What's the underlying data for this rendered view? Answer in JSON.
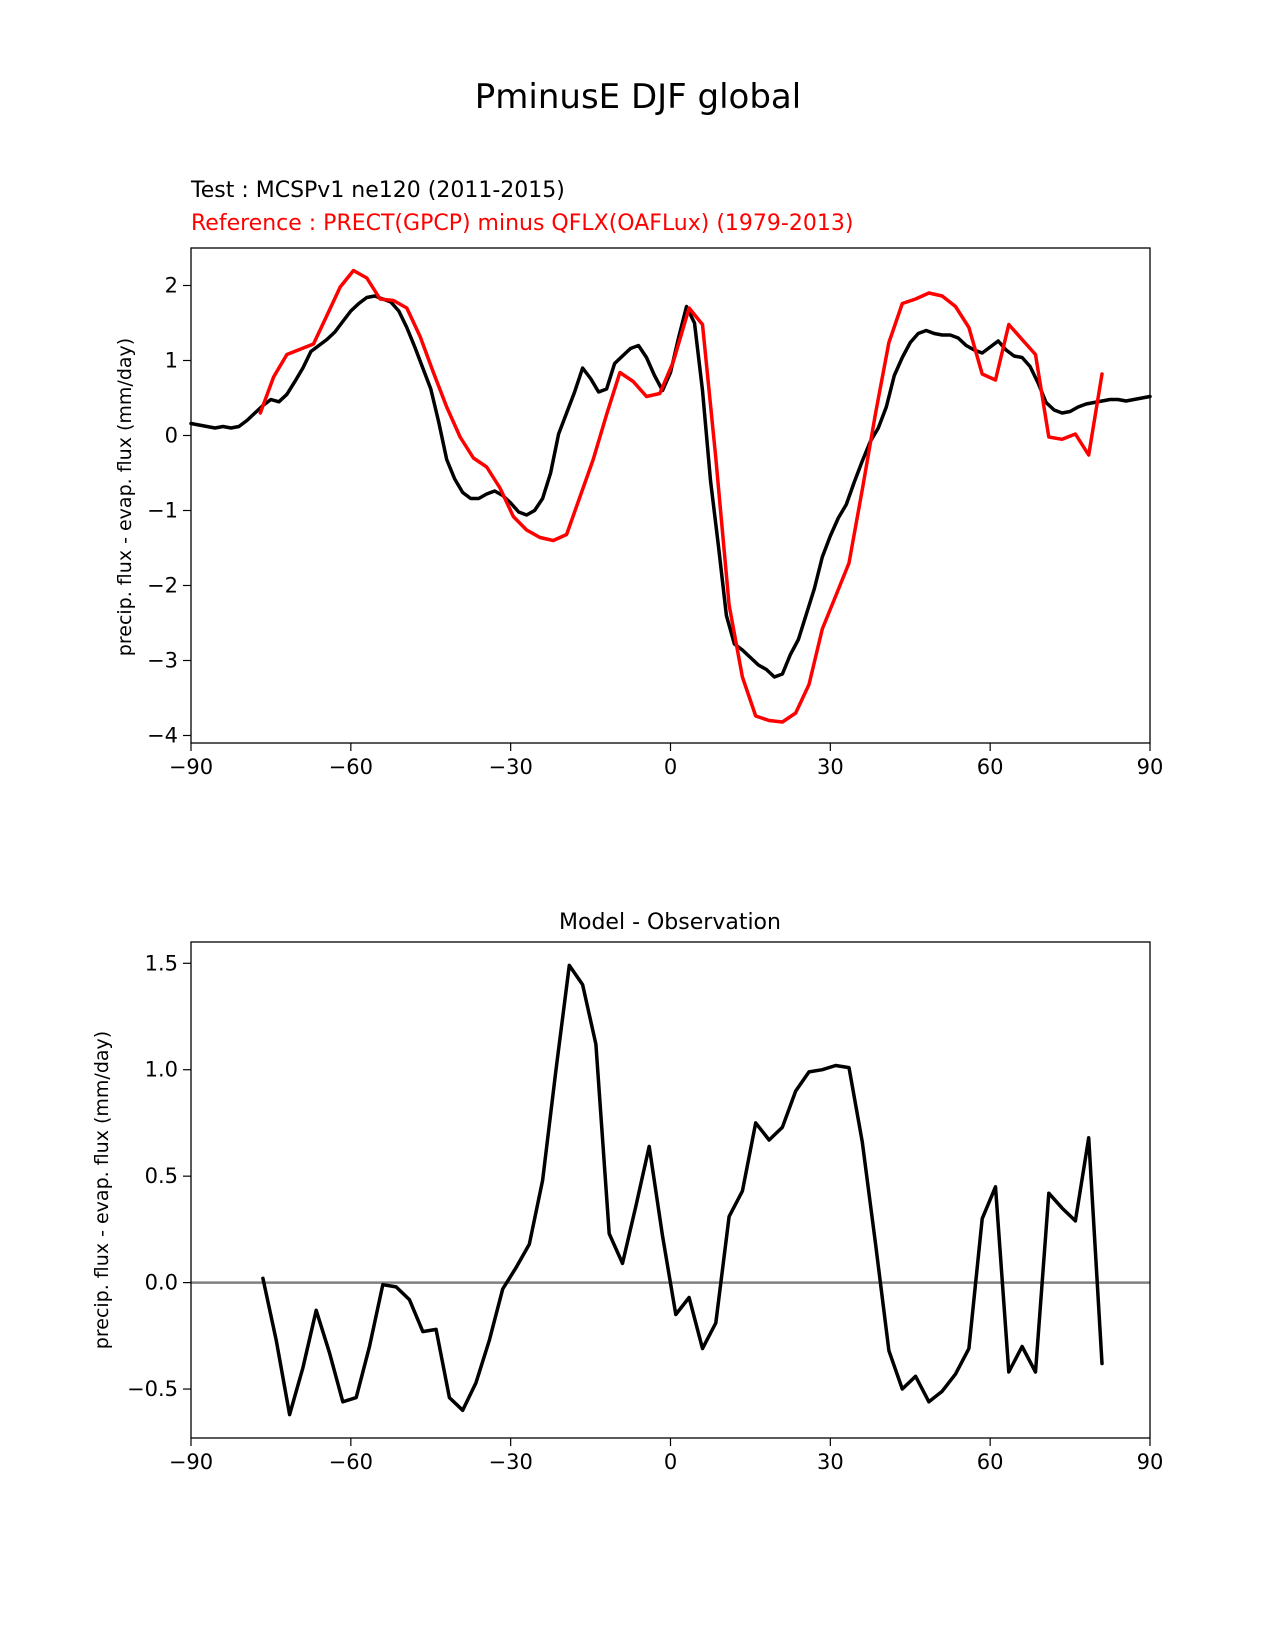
{
  "figure": {
    "title": "PminusE DJF global"
  },
  "top_panel": {
    "test_label": "Test : MCSPv1 ne120 (2011-2015)",
    "ref_label": "Reference : PRECT(GPCP) minus QFLX(OAFLux) (1979-2013)",
    "test_color": "#000000",
    "ref_color": "#ff0000"
  },
  "bottom_panel": {
    "title": "Model - Observation",
    "zero_line_color": "#808080"
  },
  "chart_data": [
    {
      "type": "line",
      "panel": "top",
      "title": "",
      "xlabel": "",
      "ylabel": "precip. flux - evap. flux (mm/day)",
      "xlim": [
        -90,
        90
      ],
      "ylim": [
        -4.1,
        2.5
      ],
      "xticks": [
        -90,
        -60,
        -30,
        0,
        30,
        60,
        90
      ],
      "yticks": [
        -4,
        -3,
        -2,
        -1,
        0,
        1,
        2
      ],
      "xtick_labels": [
        "−90",
        "−60",
        "−30",
        "0",
        "30",
        "60",
        "90"
      ],
      "ytick_labels": [
        "−4",
        "−3",
        "−2",
        "−1",
        "0",
        "1",
        "2"
      ],
      "grid": false,
      "series": [
        {
          "name": "Test : MCSPv1 ne120 (2011-2015)",
          "color": "#000000",
          "x": [
            -90,
            -88.5,
            -87,
            -85.5,
            -84,
            -82.5,
            -81,
            -79.5,
            -78,
            -76.5,
            -75,
            -73.5,
            -72,
            -70.5,
            -69,
            -67.5,
            -66,
            -64.5,
            -63,
            -61.5,
            -60,
            -58.5,
            -57,
            -55.5,
            -54,
            -52.5,
            -51,
            -49.5,
            -48,
            -46.5,
            -45,
            -43.5,
            -42,
            -40.5,
            -39,
            -37.5,
            -36,
            -34.5,
            -33,
            -31.5,
            -30,
            -28.5,
            -27,
            -25.5,
            -24,
            -22.5,
            -21,
            -19.5,
            -18,
            -16.5,
            -15,
            -13.5,
            -12,
            -10.5,
            -9,
            -7.5,
            -6,
            -4.5,
            -3,
            -1.5,
            0,
            1.5,
            3,
            4.5,
            6,
            7.5,
            9,
            10.5,
            12,
            13.5,
            15,
            16.5,
            18,
            19.5,
            21,
            22.5,
            24,
            25.5,
            27,
            28.5,
            30,
            31.5,
            33,
            34.5,
            36,
            37.5,
            39,
            40.5,
            42,
            43.5,
            45,
            46.5,
            48,
            49.5,
            51,
            52.5,
            54,
            55.5,
            57,
            58.5,
            60,
            61.5,
            63,
            64.5,
            66,
            67.5,
            69,
            70.5,
            72,
            73.5,
            75,
            76.5,
            78,
            79.5,
            81,
            82.5,
            84,
            85.5,
            87,
            88.5,
            90
          ],
          "y": [
            0.16,
            0.14,
            0.12,
            0.1,
            0.12,
            0.1,
            0.12,
            0.2,
            0.3,
            0.4,
            0.48,
            0.45,
            0.55,
            0.72,
            0.9,
            1.12,
            1.2,
            1.28,
            1.38,
            1.52,
            1.66,
            1.76,
            1.84,
            1.86,
            1.82,
            1.78,
            1.66,
            1.44,
            1.18,
            0.9,
            0.62,
            0.18,
            -0.32,
            -0.58,
            -0.76,
            -0.84,
            -0.84,
            -0.78,
            -0.74,
            -0.8,
            -0.9,
            -1.02,
            -1.06,
            -1.0,
            -0.84,
            -0.5,
            0.02,
            0.3,
            0.58,
            0.9,
            0.76,
            0.58,
            0.62,
            0.96,
            1.06,
            1.16,
            1.2,
            1.04,
            0.8,
            0.6,
            0.84,
            1.3,
            1.72,
            1.5,
            0.6,
            -0.6,
            -1.48,
            -2.4,
            -2.78,
            -2.86,
            -2.96,
            -3.06,
            -3.12,
            -3.22,
            -3.18,
            -2.92,
            -2.72,
            -2.38,
            -2.04,
            -1.62,
            -1.34,
            -1.1,
            -0.92,
            -0.62,
            -0.34,
            -0.08,
            0.1,
            0.38,
            0.8,
            1.04,
            1.24,
            1.36,
            1.4,
            1.36,
            1.34,
            1.34,
            1.3,
            1.2,
            1.14,
            1.1,
            1.18,
            1.26,
            1.14,
            1.06,
            1.04,
            0.92,
            0.7,
            0.44,
            0.34,
            0.3,
            0.32,
            0.38,
            0.42,
            0.44,
            0.46,
            0.48,
            0.48,
            0.46,
            0.48,
            0.5,
            0.52
          ]
        },
        {
          "name": "Reference : PRECT(GPCP) minus QFLX(OAFLux) (1979-2013)",
          "color": "#ff0000",
          "x": [
            -77,
            -74.5,
            -72,
            -67,
            -64.5,
            -62,
            -59.5,
            -57,
            -54.5,
            -52,
            -49.5,
            -47,
            -44.5,
            -42,
            -39.5,
            -37,
            -34.5,
            -32,
            -29.5,
            -27,
            -24.5,
            -22,
            -19.5,
            -17,
            -14.5,
            -12,
            -9.5,
            -7,
            -4.5,
            -2,
            0.5,
            3.5,
            6,
            8.5,
            11,
            13.5,
            16,
            18.5,
            21,
            23.5,
            26,
            28.5,
            31,
            33.5,
            36,
            38.5,
            41,
            43.5,
            46,
            48.5,
            51,
            53.5,
            56,
            58.5,
            61,
            63.5,
            66,
            68.5,
            71,
            73.5,
            76,
            78.5,
            81
          ],
          "y": [
            0.3,
            0.78,
            1.08,
            1.22,
            1.6,
            1.98,
            2.2,
            2.1,
            1.82,
            1.8,
            1.7,
            1.32,
            0.84,
            0.38,
            -0.02,
            -0.3,
            -0.42,
            -0.7,
            -1.08,
            -1.26,
            -1.36,
            -1.4,
            -1.32,
            -0.82,
            -0.32,
            0.28,
            0.84,
            0.72,
            0.52,
            0.56,
            0.98,
            1.7,
            1.48,
            -0.3,
            -2.26,
            -3.22,
            -3.74,
            -3.8,
            -3.82,
            -3.7,
            -3.32,
            -2.58,
            -2.14,
            -1.7,
            -0.72,
            0.3,
            1.24,
            1.76,
            1.82,
            1.9,
            1.86,
            1.72,
            1.44,
            0.82,
            0.74,
            1.48,
            1.28,
            1.08,
            -0.02,
            -0.05,
            0.02,
            -0.26,
            0.82
          ]
        }
      ]
    },
    {
      "type": "line",
      "panel": "bottom",
      "title": "Model - Observation",
      "xlabel": "",
      "ylabel": "precip. flux - evap. flux (mm/day)",
      "xlim": [
        -90,
        90
      ],
      "ylim": [
        -0.73,
        1.6
      ],
      "xticks": [
        -90,
        -60,
        -30,
        0,
        30,
        60,
        90
      ],
      "yticks": [
        -0.5,
        0.0,
        0.5,
        1.0,
        1.5
      ],
      "xtick_labels": [
        "−90",
        "−60",
        "−30",
        "0",
        "30",
        "60",
        "90"
      ],
      "ytick_labels": [
        "−0.5",
        "0.0",
        "0.5",
        "1.0",
        "1.5"
      ],
      "grid": false,
      "zero_line": true,
      "series": [
        {
          "name": "",
          "color": "#000000",
          "x": [
            -76.5,
            -74,
            -71.5,
            -69,
            -66.5,
            -64,
            -61.5,
            -59,
            -56.5,
            -54,
            -51.5,
            -49,
            -46.5,
            -44,
            -41.5,
            -39,
            -36.5,
            -34,
            -31.5,
            -29,
            -26.5,
            -24,
            -21.5,
            -19,
            -16.5,
            -14,
            -11.5,
            -9,
            -6.5,
            -4,
            -1.5,
            1,
            3.5,
            6,
            8.5,
            11,
            13.5,
            16,
            18.5,
            21,
            23.5,
            26,
            28.5,
            31,
            33.5,
            36,
            38.5,
            41,
            43.5,
            46,
            48.5,
            51,
            53.5,
            56,
            58.5,
            61,
            63.5,
            66,
            68.5,
            71,
            73.5,
            76,
            78.5,
            81
          ],
          "y": [
            0.02,
            -0.27,
            -0.62,
            -0.4,
            -0.13,
            -0.33,
            -0.56,
            -0.54,
            -0.3,
            -0.01,
            -0.02,
            -0.08,
            -0.23,
            -0.22,
            -0.54,
            -0.6,
            -0.47,
            -0.27,
            -0.03,
            0.07,
            0.18,
            0.48,
            1.0,
            1.49,
            1.4,
            1.12,
            0.23,
            0.09,
            0.36,
            0.64,
            0.22,
            -0.15,
            -0.07,
            -0.31,
            -0.19,
            0.31,
            0.43,
            0.75,
            0.67,
            0.73,
            0.9,
            0.99,
            1.0,
            1.02,
            1.01,
            0.66,
            0.18,
            -0.32,
            -0.5,
            -0.44,
            -0.56,
            -0.51,
            -0.43,
            -0.31,
            0.3,
            0.45,
            -0.42,
            -0.3,
            -0.42,
            0.42,
            0.35,
            0.29,
            0.68,
            -0.38
          ]
        }
      ]
    }
  ]
}
